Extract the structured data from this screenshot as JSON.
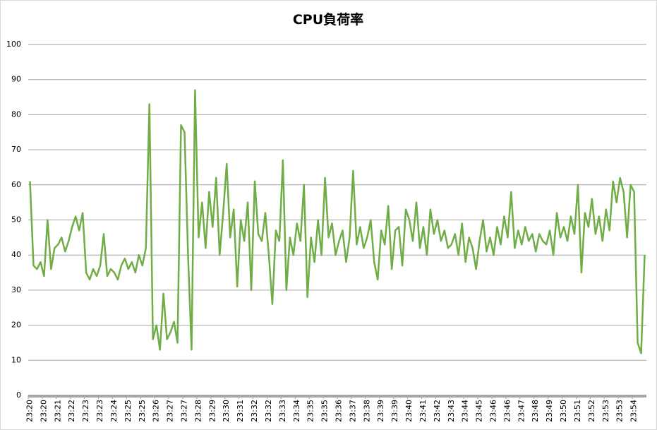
{
  "chart_data": {
    "type": "line",
    "title": "CPU負荷率",
    "categories": [
      "23:20",
      null,
      null,
      null,
      "23:20",
      null,
      null,
      null,
      "23:21",
      null,
      null,
      null,
      "23:22",
      null,
      null,
      null,
      "23:23",
      null,
      null,
      null,
      "23:23",
      null,
      null,
      null,
      "23:24",
      null,
      null,
      null,
      "23:25",
      null,
      null,
      null,
      "23:25",
      null,
      null,
      null,
      "23:26",
      null,
      null,
      null,
      "23:27",
      null,
      null,
      null,
      "23:27",
      null,
      null,
      null,
      "23:28",
      null,
      null,
      null,
      "23:29",
      null,
      null,
      null,
      "23:30",
      null,
      null,
      null,
      "23:31",
      null,
      null,
      null,
      "23:32",
      null,
      null,
      null,
      "23:32",
      null,
      null,
      null,
      "23:33",
      null,
      null,
      null,
      "23:34",
      null,
      null,
      null,
      "23:35",
      null,
      null,
      null,
      "23:35",
      null,
      null,
      null,
      "23:36",
      null,
      null,
      null,
      "23:37",
      null,
      null,
      null,
      "23:38",
      null,
      null,
      null,
      "23:39",
      null,
      null,
      null,
      "23:39",
      null,
      null,
      null,
      "23:40",
      null,
      null,
      null,
      "23:41",
      null,
      null,
      null,
      "23:42",
      null,
      null,
      null,
      "23:43",
      null,
      null,
      null,
      "23:44",
      null,
      null,
      null,
      "23:45",
      null,
      null,
      null,
      "23:46",
      null,
      null,
      null,
      "23:46",
      null,
      null,
      null,
      "23:47",
      null,
      null,
      null,
      "23:48",
      null,
      null,
      null,
      "23:49",
      null,
      null,
      null,
      "23:50",
      null,
      null,
      null,
      "23:51",
      null,
      null,
      null,
      "23:52",
      null,
      null,
      null,
      "23:53",
      null,
      null,
      null,
      "23:53",
      null,
      null,
      null,
      "23:54",
      null,
      null,
      null
    ],
    "values": [
      61,
      37,
      36,
      38,
      34,
      50,
      36,
      42,
      43,
      45,
      41,
      44,
      48,
      51,
      47,
      52,
      35,
      33,
      36,
      34,
      37,
      46,
      34,
      36,
      35,
      33,
      37,
      39,
      36,
      38,
      35,
      40,
      37,
      42,
      83,
      16,
      20,
      13,
      29,
      16,
      18,
      21,
      15,
      77,
      75,
      40,
      13,
      87,
      45,
      55,
      42,
      58,
      48,
      62,
      40,
      52,
      66,
      45,
      53,
      31,
      50,
      44,
      55,
      30,
      61,
      46,
      44,
      52,
      40,
      26,
      47,
      44,
      67,
      30,
      45,
      40,
      49,
      44,
      60,
      28,
      45,
      38,
      50,
      40,
      62,
      45,
      49,
      40,
      44,
      47,
      38,
      45,
      64,
      43,
      48,
      42,
      45,
      50,
      38,
      33,
      47,
      43,
      54,
      36,
      47,
      48,
      37,
      53,
      50,
      44,
      55,
      42,
      48,
      40,
      53,
      46,
      50,
      44,
      47,
      42,
      43,
      46,
      40,
      49,
      38,
      45,
      42,
      36,
      44,
      50,
      41,
      45,
      40,
      48,
      43,
      51,
      45,
      58,
      42,
      47,
      43,
      48,
      44,
      46,
      41,
      46,
      44,
      43,
      47,
      40,
      52,
      45,
      48,
      44,
      51,
      46,
      60,
      35,
      52,
      48,
      56,
      46,
      51,
      44,
      53,
      47,
      61,
      55,
      62,
      58,
      45,
      60,
      58,
      15,
      12,
      40
    ],
    "color": "#70ad47",
    "ylim": [
      0,
      100
    ],
    "yticks": [
      0,
      10,
      20,
      30,
      40,
      50,
      60,
      70,
      80,
      90,
      100
    ],
    "grid": true
  }
}
